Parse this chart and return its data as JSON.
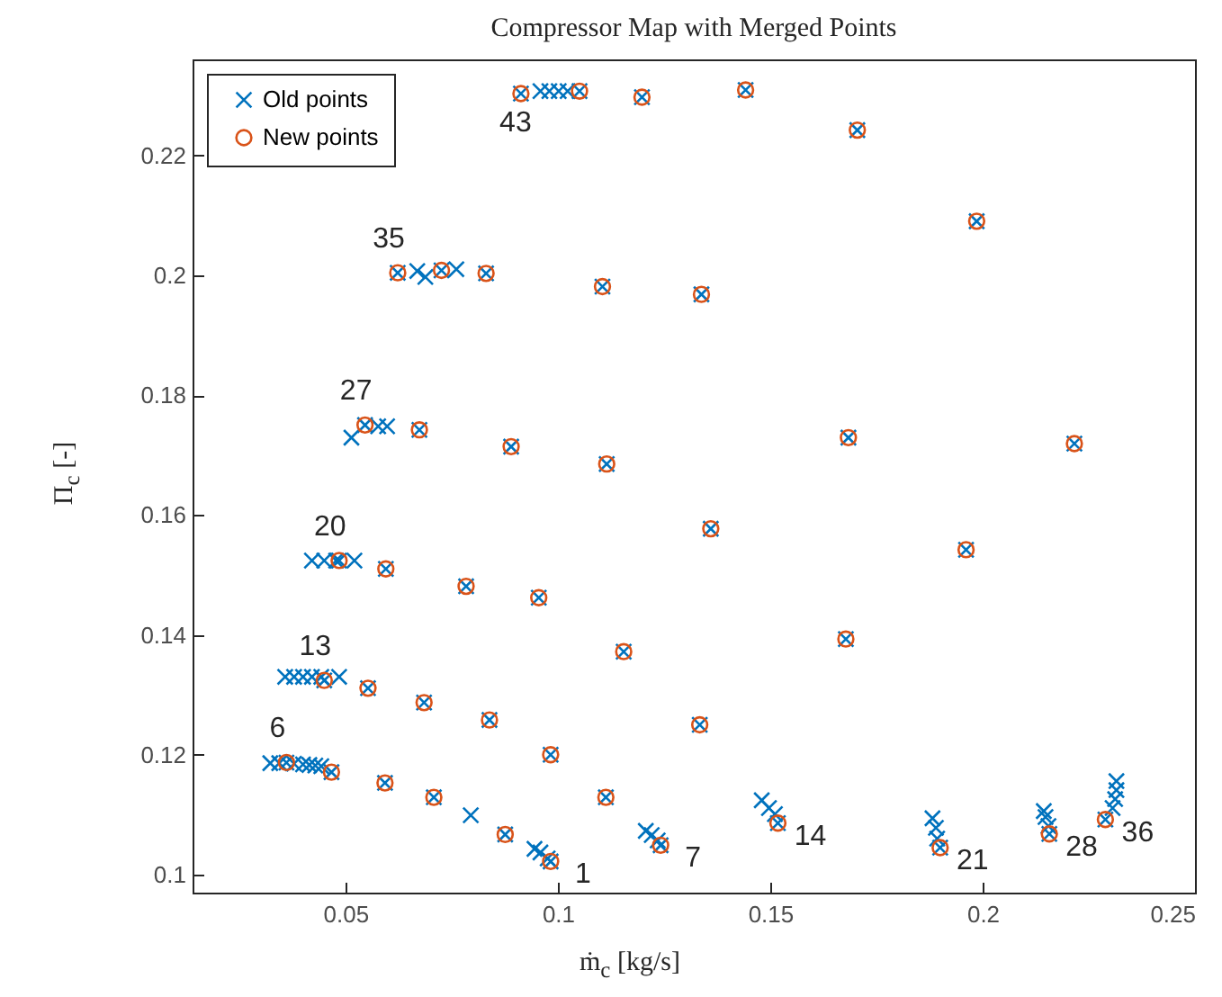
{
  "chart_data": {
    "type": "scatter",
    "title": "Compressor Map with Merged Points",
    "xlabel": "ṁ$_{c}$ [kg/s]",
    "ylabel": "Π$_{c}$ [-]",
    "xlim": [
      0.014,
      0.25
    ],
    "ylim": [
      0.097,
      0.236
    ],
    "xticks": [
      0.05,
      0.1,
      0.15,
      0.2,
      0.25
    ],
    "yticks": [
      0.1,
      0.12,
      0.14,
      0.16,
      0.18,
      0.2,
      0.22
    ],
    "grid": false,
    "legend": "top left",
    "series": [
      {
        "name": "Old points",
        "color": "#0072bd",
        "marker": "cross",
        "x": [
          0.0983,
          0.0876,
          0.0708,
          0.0593,
          0.0467,
          0.0361,
          0.1242,
          0.1334,
          0.1113,
          0.0983,
          0.0839,
          0.0685,
          0.0553,
          0.045,
          0.1518,
          0.136,
          0.1155,
          0.0955,
          0.0784,
          0.0595,
          0.0485,
          0.19,
          0.1678,
          0.1684,
          0.1115,
          0.089,
          0.0674,
          0.0546,
          0.2157,
          0.1961,
          0.2216,
          0.1338,
          0.1105,
          0.0831,
          0.0726,
          0.0623,
          0.2289,
          0.1986,
          0.1705,
          0.1442,
          0.1198,
          0.1051,
          0.0913,
          0.0795,
          0.0945,
          0.0959,
          0.0976,
          0.0323,
          0.0344,
          0.0379,
          0.04,
          0.0415,
          0.0429,
          0.0443,
          0.0358,
          0.0379,
          0.04,
          0.0421,
          0.0443,
          0.0485,
          0.0421,
          0.045,
          0.0478,
          0.0521,
          0.0514,
          0.0577,
          0.0598,
          0.0669,
          0.0688,
          0.0761,
          0.0959,
          0.098,
          0.1002,
          0.1023,
          0.1207,
          0.1221,
          0.1235,
          0.148,
          0.1497,
          0.1511,
          0.1882,
          0.189,
          0.1893,
          0.2144,
          0.2148,
          0.2155,
          0.2315,
          0.2315,
          0.2312,
          0.2306
        ],
        "values": [
          0.1022,
          0.1067,
          0.1129,
          0.1153,
          0.1171,
          0.1187,
          0.1049,
          0.125,
          0.1129,
          0.12,
          0.1258,
          0.1287,
          0.1311,
          0.1324,
          0.1086,
          0.1577,
          0.1372,
          0.1462,
          0.1481,
          0.151,
          0.1524,
          0.1045,
          0.1393,
          0.1729,
          0.1685,
          0.1714,
          0.1742,
          0.175,
          0.1068,
          0.1542,
          0.1719,
          0.1968,
          0.1981,
          0.2003,
          0.2008,
          0.2004,
          0.1092,
          0.209,
          0.2242,
          0.2309,
          0.2297,
          0.2307,
          0.2303,
          0.1099,
          0.1043,
          0.1037,
          0.1027,
          0.1186,
          0.1186,
          0.1185,
          0.1184,
          0.1183,
          0.1182,
          0.1181,
          0.133,
          0.133,
          0.133,
          0.133,
          0.133,
          0.133,
          0.1524,
          0.1524,
          0.1524,
          0.1524,
          0.1729,
          0.1748,
          0.1748,
          0.2007,
          0.1997,
          0.201,
          0.2307,
          0.2307,
          0.2307,
          0.2307,
          0.1073,
          0.1066,
          0.1057,
          0.1124,
          0.1111,
          0.1101,
          0.1094,
          0.1078,
          0.106,
          0.1106,
          0.1096,
          0.1081,
          0.1156,
          0.1141,
          0.1126,
          0.1111
        ]
      },
      {
        "name": "New points",
        "color": "#d95319",
        "marker": "circle",
        "x": [
          0.0983,
          0.0876,
          0.0708,
          0.0593,
          0.0467,
          0.0361,
          0.1242,
          0.1334,
          0.1113,
          0.0983,
          0.0839,
          0.0685,
          0.0553,
          0.045,
          0.1518,
          0.136,
          0.1155,
          0.0955,
          0.0784,
          0.0595,
          0.0485,
          0.19,
          0.1678,
          0.1684,
          0.1115,
          0.089,
          0.0674,
          0.0546,
          0.2157,
          0.1961,
          0.2216,
          0.1338,
          0.1105,
          0.0831,
          0.0726,
          0.0623,
          0.2289,
          0.1986,
          0.1705,
          0.1442,
          0.1198,
          0.1051,
          0.0913
        ],
        "values": [
          0.1022,
          0.1067,
          0.1129,
          0.1153,
          0.1171,
          0.1187,
          0.1049,
          0.125,
          0.1129,
          0.12,
          0.1258,
          0.1287,
          0.1311,
          0.1324,
          0.1086,
          0.1577,
          0.1372,
          0.1462,
          0.1481,
          0.151,
          0.1524,
          0.1045,
          0.1393,
          0.1729,
          0.1685,
          0.1714,
          0.1742,
          0.175,
          0.1068,
          0.1542,
          0.1719,
          0.1968,
          0.1981,
          0.2003,
          0.2008,
          0.2004,
          0.1092,
          0.209,
          0.2242,
          0.2309,
          0.2297,
          0.2307,
          0.2303
        ]
      }
    ],
    "annotations": [
      {
        "text": "1",
        "x": 0.0983,
        "y": 0.1022
      },
      {
        "text": "7",
        "x": 0.1242,
        "y": 0.1049
      },
      {
        "text": "14",
        "x": 0.1518,
        "y": 0.1086
      },
      {
        "text": "21",
        "x": 0.19,
        "y": 0.1045
      },
      {
        "text": "28",
        "x": 0.2157,
        "y": 0.1068
      },
      {
        "text": "36",
        "x": 0.2289,
        "y": 0.1092
      },
      {
        "text": "6",
        "x": 0.0361,
        "y": 0.1187
      },
      {
        "text": "13",
        "x": 0.045,
        "y": 0.1324
      },
      {
        "text": "20",
        "x": 0.0485,
        "y": 0.1524
      },
      {
        "text": "27",
        "x": 0.0546,
        "y": 0.175
      },
      {
        "text": "35",
        "x": 0.0623,
        "y": 0.2004
      },
      {
        "text": "43",
        "x": 0.0913,
        "y": 0.2303
      }
    ]
  }
}
